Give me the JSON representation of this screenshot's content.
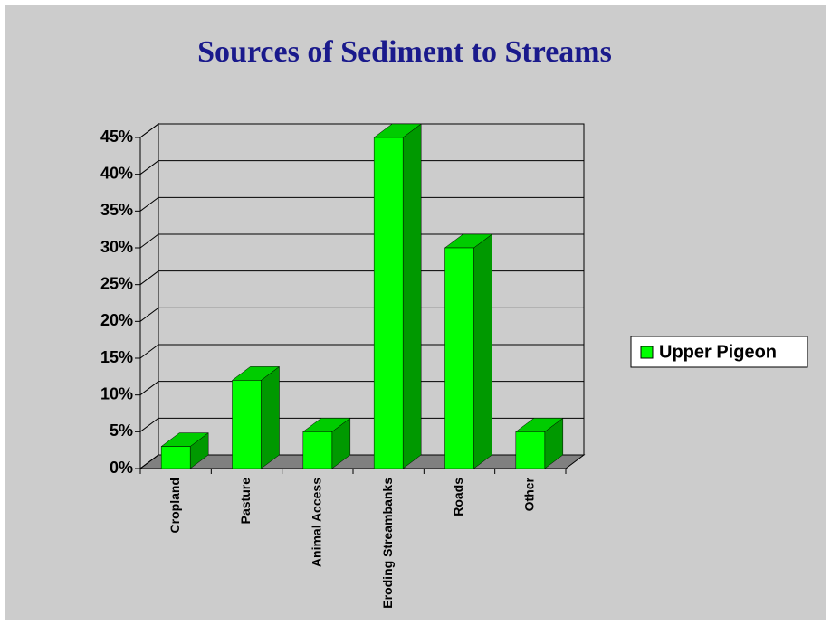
{
  "chart_data": {
    "type": "bar3d",
    "title": "Sources of Sediment to Streams",
    "categories": [
      "Cropland",
      "Pasture",
      "Animal Access",
      "Eroding Streambanks",
      "Roads",
      "Other"
    ],
    "series": [
      {
        "name": "Upper Pigeon",
        "color": "#00ff00",
        "values": [
          3,
          12,
          5,
          45,
          30,
          5
        ]
      }
    ],
    "ylim": [
      0,
      45
    ],
    "yticks": [
      {
        "value": 0,
        "label": "0%"
      },
      {
        "value": 5,
        "label": "5%"
      },
      {
        "value": 10,
        "label": "10%"
      },
      {
        "value": 15,
        "label": "15%"
      },
      {
        "value": 20,
        "label": "20%"
      },
      {
        "value": 25,
        "label": "25%"
      },
      {
        "value": 30,
        "label": "30%"
      },
      {
        "value": 35,
        "label": "35%"
      },
      {
        "value": 40,
        "label": "40%"
      },
      {
        "value": 45,
        "label": "45%"
      }
    ],
    "grid": true,
    "legend": "right"
  }
}
